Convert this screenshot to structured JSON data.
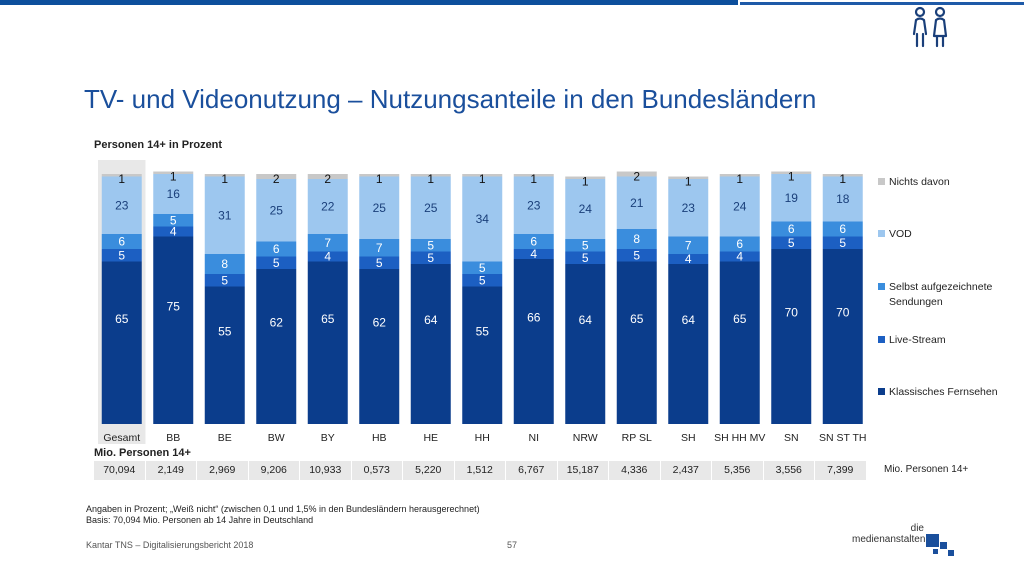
{
  "title": "TV- und Videonutzung – Nutzungsanteile in den Bundesländern",
  "subtitle": "Personen 14+ in Prozent",
  "mio": {
    "title": "Mio. Personen 14+",
    "values": [
      "70,094",
      "2,149",
      "2,969",
      "9,206",
      "10,933",
      "0,573",
      "5,220",
      "1,512",
      "6,767",
      "15,187",
      "4,336",
      "2,437",
      "5,356",
      "3,556",
      "7,399"
    ],
    "label": "Mio.  Personen 14+"
  },
  "footnotes": {
    "line1": "Angaben in Prozent; „Weiß nicht“ (zwischen 0,1 und 1,5% in den Bundesländern herausgerechnet)",
    "line2": "Basis: 70,094 Mio. Personen ab 14 Jahre in Deutschland"
  },
  "source": "Kantar TNS – Digitalisierungsbericht 2018",
  "page_number": "57",
  "logo": {
    "line1": "die",
    "line2": "medienanstalten"
  },
  "colors": {
    "klassisch": "#0b3d8c",
    "livestream": "#1c5fc2",
    "selbst": "#3a8ddd",
    "vod": "#9dc7ef",
    "nichts": "#c8c8c8",
    "highlight": "#e8e8e8",
    "title": "#1a4f9c"
  },
  "chart_data": {
    "type": "bar",
    "stacked": true,
    "categories": [
      "Gesamt",
      "BB",
      "BE",
      "BW",
      "BY",
      "HB",
      "HE",
      "HH",
      "NI",
      "NRW",
      "RP SL",
      "SH",
      "SH HH MV",
      "SN",
      "SN ST TH"
    ],
    "series": [
      {
        "name": "Klassisches Fernsehen",
        "values": [
          65,
          75,
          55,
          62,
          65,
          62,
          64,
          55,
          66,
          64,
          65,
          64,
          65,
          70,
          70
        ]
      },
      {
        "name": "Live-Stream",
        "values": [
          5,
          4,
          5,
          5,
          4,
          5,
          5,
          5,
          4,
          5,
          5,
          4,
          4,
          5,
          5
        ]
      },
      {
        "name": "Selbst aufgezeichnete Sendungen",
        "values": [
          6,
          5,
          8,
          6,
          7,
          7,
          5,
          5,
          6,
          5,
          8,
          7,
          6,
          6,
          6
        ]
      },
      {
        "name": "VOD",
        "values": [
          23,
          16,
          31,
          25,
          22,
          25,
          25,
          34,
          23,
          24,
          21,
          23,
          24,
          19,
          18
        ]
      },
      {
        "name": "Nichts davon",
        "values": [
          1,
          1,
          1,
          2,
          2,
          1,
          1,
          1,
          1,
          1,
          2,
          1,
          1,
          1,
          1
        ]
      }
    ],
    "legend_position": "right",
    "highlight_category": "Gesamt",
    "ylim": [
      0,
      100
    ],
    "grid": false
  }
}
